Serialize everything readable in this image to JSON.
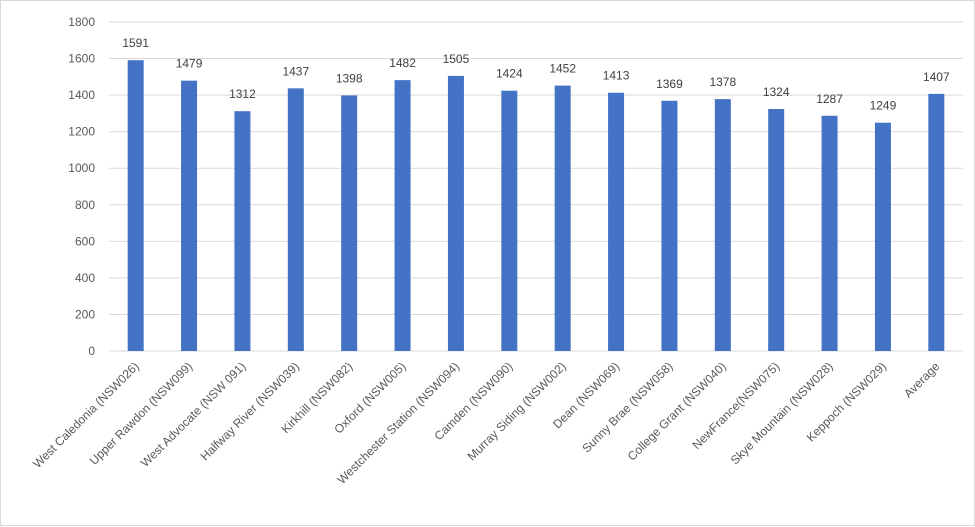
{
  "chart_data": {
    "type": "bar",
    "title": "",
    "xlabel": "",
    "ylabel": "",
    "ylim": [
      0,
      1800
    ],
    "yticks": [
      0,
      200,
      400,
      600,
      800,
      1000,
      1200,
      1400,
      1600,
      1800
    ],
    "grid": true,
    "legend": "none",
    "categories": [
      "West Caledonia (NSW026)",
      "Upper Rawdon (NSW099)",
      "West Advocate (NSW 091)",
      "Halfway River (NSW039)",
      "Kirkhill (NSW082)",
      "Oxford (NSW005)",
      "Westchester Station (NSW094)",
      "Camden (NSW090)",
      "Murray Siding (NSW002)",
      "Dean (NSW069)",
      "Sunny Brae (NSW058)",
      "College Grant (NSW040)",
      "NewFrance(NSW075)",
      "Skye Mountain (NSW028)",
      "Keppoch (NSW029)",
      "Average"
    ],
    "values": [
      1591,
      1479,
      1312,
      1437,
      1398,
      1482,
      1505,
      1424,
      1452,
      1413,
      1369,
      1378,
      1324,
      1287,
      1249,
      1407
    ],
    "colors": {
      "bar": "#4472c4",
      "grid": "#d9d9d9",
      "axis": "#d9d9d9"
    }
  }
}
